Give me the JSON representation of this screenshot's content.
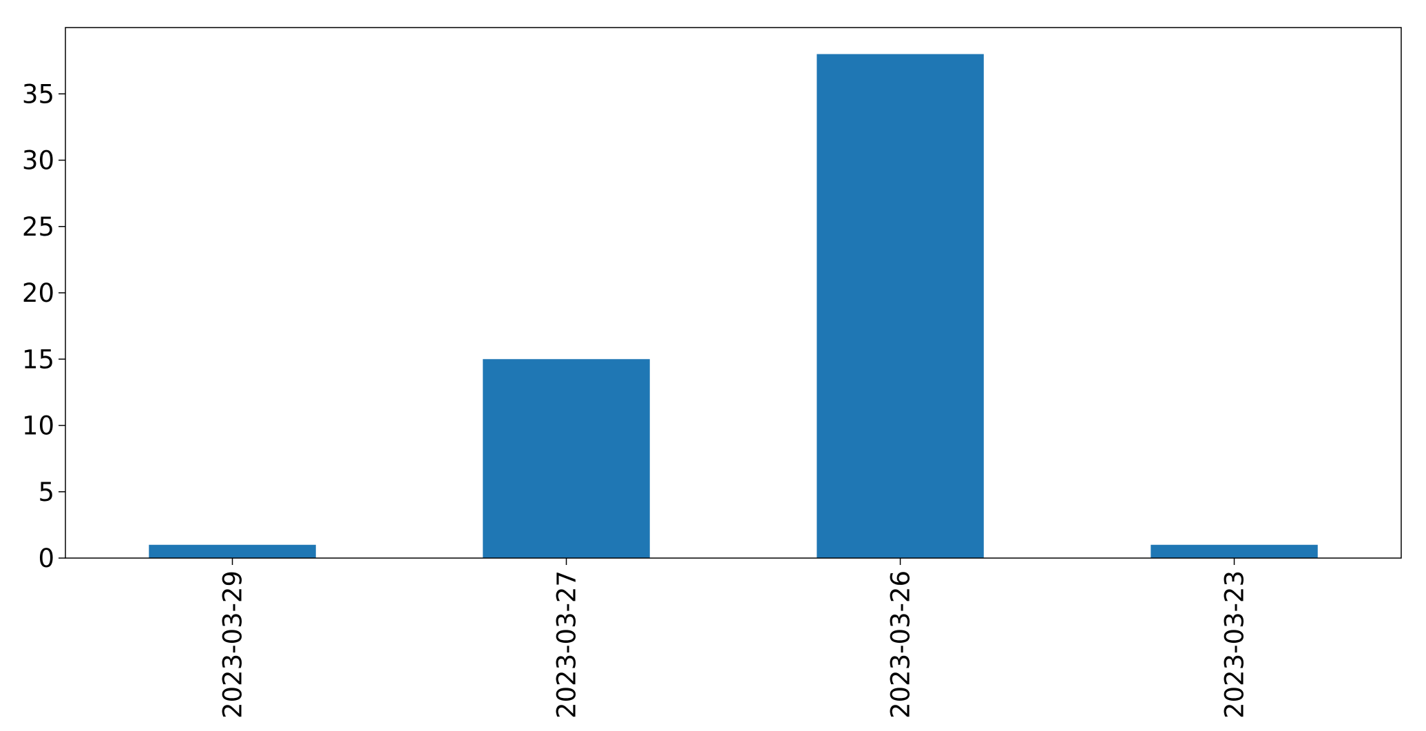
{
  "chart_data": {
    "type": "bar",
    "categories": [
      "2023-03-29",
      "2023-03-27",
      "2023-03-26",
      "2023-03-23"
    ],
    "values": [
      1,
      15,
      38,
      1
    ],
    "title": "",
    "xlabel": "",
    "ylabel": "",
    "ylim": [
      0,
      40
    ],
    "yticks": [
      0,
      5,
      10,
      15,
      20,
      25,
      30,
      35
    ],
    "grid": false,
    "legend": "none",
    "bar_color": "#1f77b4",
    "x_tick_rotation": "vertical"
  }
}
